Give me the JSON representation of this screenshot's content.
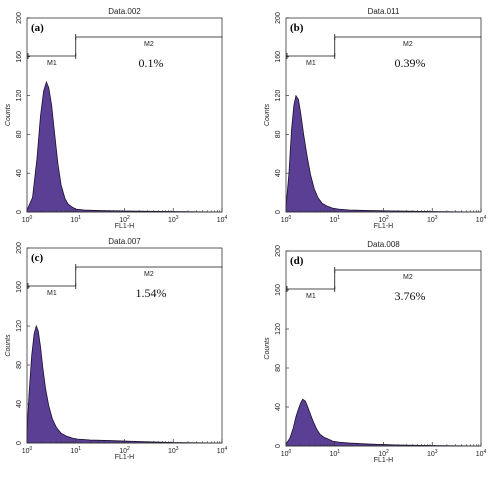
{
  "chart_data": [
    {
      "type": "area",
      "panel_label": "(a)",
      "title": "Data.002",
      "xlabel": "FL1-H",
      "ylabel": "Counts",
      "xscale": "log",
      "xlim": [
        1,
        10000
      ],
      "ylim": [
        0,
        200
      ],
      "yticks": [
        0,
        40,
        80,
        120,
        160,
        200
      ],
      "xticks": [
        {
          "base": "10",
          "exp": "0"
        },
        {
          "base": "10",
          "exp": "1"
        },
        {
          "base": "10",
          "exp": "2"
        },
        {
          "base": "10",
          "exp": "3"
        },
        {
          "base": "10",
          "exp": "4"
        }
      ],
      "markers": [
        {
          "name": "M1",
          "range": [
            1,
            10
          ]
        },
        {
          "name": "M2",
          "range": [
            10,
            10000
          ]
        }
      ],
      "m2_percent": "0.1%",
      "x": [
        1,
        1.3,
        1.6,
        1.9,
        2.2,
        2.5,
        2.8,
        3.2,
        3.7,
        4.3,
        5,
        6,
        7,
        8.5,
        10,
        15,
        30,
        100,
        1000,
        10000
      ],
      "y": [
        2,
        15,
        55,
        100,
        125,
        134,
        128,
        110,
        80,
        50,
        28,
        14,
        8,
        5,
        3,
        2,
        1.5,
        1,
        0.5,
        0
      ]
    },
    {
      "type": "area",
      "panel_label": "(b)",
      "title": "Data.011",
      "xlabel": "FL1-H",
      "ylabel": "Counts",
      "xscale": "log",
      "xlim": [
        1,
        10000
      ],
      "ylim": [
        0,
        200
      ],
      "yticks": [
        0,
        40,
        80,
        120,
        160,
        200
      ],
      "xticks": [
        {
          "base": "10",
          "exp": "0"
        },
        {
          "base": "10",
          "exp": "1"
        },
        {
          "base": "10",
          "exp": "2"
        },
        {
          "base": "10",
          "exp": "3"
        },
        {
          "base": "10",
          "exp": "4"
        }
      ],
      "markers": [
        {
          "name": "M1",
          "range": [
            1,
            10
          ]
        },
        {
          "name": "M2",
          "range": [
            10,
            10000
          ]
        }
      ],
      "m2_percent": "0.39%",
      "x": [
        1,
        1.15,
        1.3,
        1.45,
        1.6,
        1.8,
        2,
        2.3,
        2.7,
        3.2,
        3.8,
        4.5,
        5.5,
        7,
        9,
        12,
        20,
        50,
        200,
        1000,
        10000
      ],
      "y": [
        5,
        40,
        85,
        110,
        120,
        116,
        102,
        80,
        58,
        38,
        24,
        15,
        9,
        6,
        4,
        3,
        2,
        1.5,
        1,
        0.5,
        0
      ]
    },
    {
      "type": "area",
      "panel_label": "(c)",
      "title": "Data.007",
      "xlabel": "FL1-H",
      "ylabel": "Counts",
      "xscale": "log",
      "xlim": [
        1,
        10000
      ],
      "ylim": [
        0,
        200
      ],
      "yticks": [
        0,
        40,
        80,
        120,
        160,
        200
      ],
      "xticks": [
        {
          "base": "10",
          "exp": "0"
        },
        {
          "base": "10",
          "exp": "1"
        },
        {
          "base": "10",
          "exp": "2"
        },
        {
          "base": "10",
          "exp": "3"
        },
        {
          "base": "10",
          "exp": "4"
        }
      ],
      "markers": [
        {
          "name": "M1",
          "range": [
            1,
            10
          ]
        },
        {
          "name": "M2",
          "range": [
            10,
            10000
          ]
        }
      ],
      "m2_percent": "1.54%",
      "x": [
        1,
        1.1,
        1.25,
        1.4,
        1.55,
        1.7,
        1.9,
        2.1,
        2.4,
        2.8,
        3.3,
        4,
        5,
        6.5,
        8.5,
        11,
        20,
        50,
        200,
        1000,
        10000
      ],
      "y": [
        10,
        50,
        90,
        112,
        120,
        115,
        98,
        78,
        56,
        38,
        25,
        16,
        10,
        7,
        5,
        4,
        3,
        2.5,
        1.5,
        0.5,
        0
      ]
    },
    {
      "type": "area",
      "panel_label": "(d)",
      "title": "Data.008",
      "xlabel": "FL1-H",
      "ylabel": "Counts",
      "xscale": "log",
      "xlim": [
        1,
        10000
      ],
      "ylim": [
        0,
        200
      ],
      "yticks": [
        0,
        40,
        80,
        120,
        160,
        200
      ],
      "xticks": [
        {
          "base": "10",
          "exp": "0"
        },
        {
          "base": "10",
          "exp": "1"
        },
        {
          "base": "10",
          "exp": "2"
        },
        {
          "base": "10",
          "exp": "3"
        },
        {
          "base": "10",
          "exp": "4"
        }
      ],
      "markers": [
        {
          "name": "M1",
          "range": [
            1,
            10
          ]
        },
        {
          "name": "M2",
          "range": [
            10,
            10000
          ]
        }
      ],
      "m2_percent": "3.76%",
      "x": [
        1,
        1.2,
        1.4,
        1.6,
        1.8,
        2,
        2.2,
        2.5,
        2.8,
        3.2,
        3.7,
        4.3,
        5,
        6,
        7.5,
        9,
        12,
        20,
        50,
        200,
        1000,
        10000
      ],
      "y": [
        2,
        8,
        18,
        30,
        38,
        44,
        48,
        46,
        40,
        32,
        24,
        17,
        12,
        9,
        7,
        5,
        4,
        3,
        2,
        1,
        0.5,
        0
      ]
    }
  ],
  "colors": {
    "fill": "#5b3f95",
    "edge": "#1a1030",
    "axis": "#333333"
  }
}
